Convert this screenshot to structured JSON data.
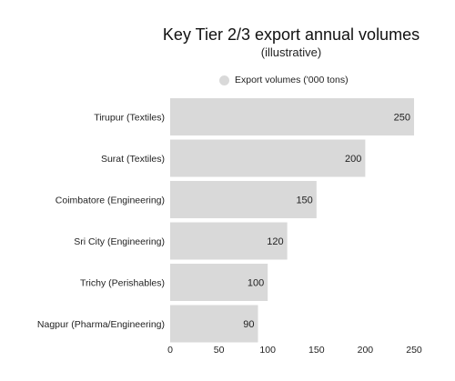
{
  "chart_data": {
    "type": "bar",
    "orientation": "horizontal",
    "title": "Key Tier 2/3 export annual volumes",
    "subtitle": "(illustrative)",
    "categories": [
      "Tirupur (Textiles)",
      "Surat (Textiles)",
      "Coimbatore (Engineering)",
      "Sri City (Engineering)",
      "Trichy (Perishables)",
      "Nagpur (Pharma/Engineering)"
    ],
    "series": [
      {
        "name": "Export volumes ('000 tons)",
        "values": [
          250,
          200,
          150,
          120,
          100,
          90
        ]
      }
    ],
    "xlim": [
      0,
      250
    ],
    "xticks": [
      0,
      50,
      100,
      150,
      200,
      250
    ],
    "grid": false,
    "legend_position": "top",
    "colors": {
      "bar": "#d9d9d9",
      "legend_swatch": "#d9d9d9",
      "text": "#222222"
    }
  }
}
